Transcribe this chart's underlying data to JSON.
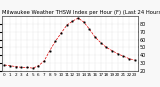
{
  "title": "Milwaukee Weather THSW Index per Hour (F) (Last 24 Hours)",
  "hours": [
    0,
    1,
    2,
    3,
    4,
    5,
    6,
    7,
    8,
    9,
    10,
    11,
    12,
    13,
    14,
    15,
    16,
    17,
    18,
    19,
    20,
    21,
    22,
    23
  ],
  "values": [
    28,
    27,
    26,
    25,
    25,
    24,
    27,
    33,
    46,
    58,
    68,
    78,
    83,
    87,
    82,
    73,
    63,
    56,
    50,
    46,
    42,
    39,
    36,
    34
  ],
  "line_color": "#dd0000",
  "marker_color": "#000000",
  "bg_color": "#f8f8f8",
  "plot_bg_color": "#ffffff",
  "grid_color": "#999999",
  "ylim": [
    20,
    90
  ],
  "yticks": [
    20,
    30,
    40,
    50,
    60,
    70,
    80
  ],
  "ylabel_fontsize": 3.5,
  "xlabel_fontsize": 3.0,
  "title_fontsize": 3.8,
  "title_color": "#000000"
}
